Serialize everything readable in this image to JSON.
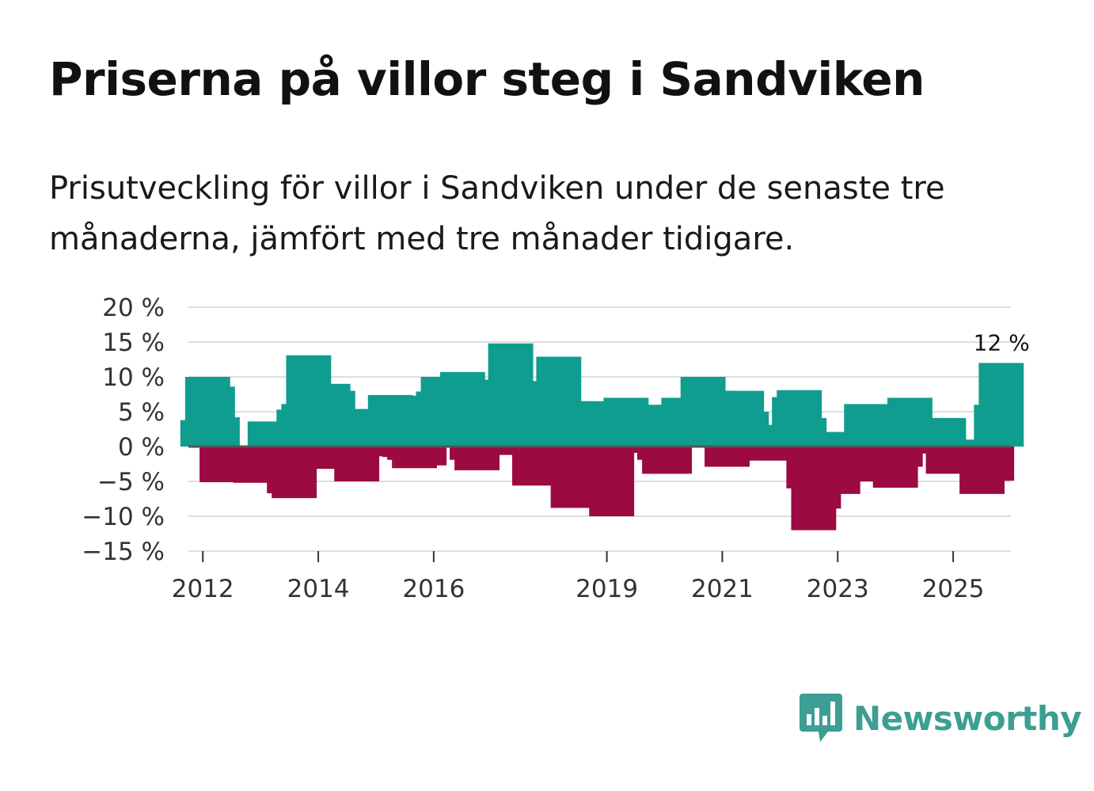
{
  "title": "Priserna på villor steg i Sandviken",
  "subtitle": "Prisutveckling för villor i Sandviken under de senaste tre månaderna, jämfört med tre månader tidigare.",
  "brand": {
    "name": "Newsworthy",
    "logo_icon": "bar-chart-speech-bubble-icon"
  },
  "colors": {
    "positive": "#0f9d8f",
    "negative": "#9c0a42",
    "grid": "#dddddd",
    "zero_line": "#555555",
    "brand": "#3d9e92"
  },
  "chart_data": {
    "type": "bar",
    "title": "Priserna på villor steg i Sandviken",
    "xlabel": "",
    "ylabel": "",
    "unit": "%",
    "ylim": [
      -15,
      20
    ],
    "yticks": [
      20,
      15,
      10,
      5,
      0,
      -5,
      -10,
      -15
    ],
    "ytick_labels": [
      "20 %",
      "15 %",
      "10 %",
      "5 %",
      "0 %",
      "−5 %",
      "−10 %",
      "−15 %"
    ],
    "x_start": 2011.75,
    "x_end": 2026.0,
    "xticks": [
      2012,
      2014,
      2016,
      2019,
      2021,
      2023,
      2025
    ],
    "xtick_labels": [
      "2012",
      "2014",
      "2016",
      "2019",
      "2021",
      "2023",
      "2025"
    ],
    "last_value_label": "12 %",
    "frequency": "monthly",
    "start_month": "2012-01",
    "values": [
      3.8,
      10.0,
      8.6,
      4.2,
      -5.1,
      -5.1,
      -2.2,
      0,
      -0.8,
      -1.3,
      -2.6,
      -5.2,
      -1.6,
      -1.0,
      3.6,
      0,
      1.2,
      -4.6,
      -6.7,
      -7.4,
      5.3,
      6.1,
      13.1,
      -3.2,
      0,
      -0.6,
      9.0,
      8.0,
      0,
      -1.3,
      -2.8,
      -0.8,
      -5.0,
      -0.9,
      -1.4,
      5.4,
      1.9,
      4.5,
      2.6,
      7.4,
      7.3,
      4.6,
      -1.5,
      -1.9,
      -3.1,
      1.0,
      -2.7,
      0.7,
      2.5,
      7.9,
      10.0,
      3.4,
      6.4,
      5.0,
      10.7,
      0,
      -1.9,
      -3.4,
      1.1,
      0,
      -1.2,
      -0.7,
      8.7,
      9.6,
      14.8,
      5.4,
      6.9,
      0,
      1.8,
      -5.6,
      0,
      0,
      9.4,
      0,
      12.9,
      3.8,
      6.5,
      -8.8,
      -5.4,
      -1.9,
      6.5,
      6.5,
      2.1,
      -6.5,
      -6.3,
      -10.0,
      -0.9,
      1.4,
      7.0,
      0.8,
      0,
      0.9,
      6.0,
      4.1,
      0.8,
      -1.9,
      -3.9,
      -3.9,
      2.1,
      5.0,
      7.0,
      2.1,
      6.0,
      6.0,
      10.0,
      7.0,
      8.0,
      6.0,
      2.1,
      -2.9,
      -2.0,
      3.1,
      8.0,
      5.0,
      3.1,
      2.1,
      -2.0,
      0,
      -2.0,
      3.1,
      -2.0,
      0.9,
      0,
      7.1,
      8.1,
      4.1,
      -6.0,
      -12.0,
      -8.9,
      -2.9,
      2.1,
      -5.0,
      -6.8,
      -5.0,
      0,
      -5.0,
      -1.0,
      -1.0,
      6.1,
      0,
      0,
      -2.9,
      0,
      -2.9,
      -5.9,
      -2.9,
      2.1,
      7.0,
      4.1,
      3.1,
      1.0,
      -1.0,
      4.1,
      1.0,
      4.1,
      -3.9,
      -1.0,
      -2.9,
      1.0,
      -1.9,
      -1.0,
      -1.9,
      -6.8,
      -4.9,
      -4.9,
      6.0,
      12.0
    ]
  }
}
